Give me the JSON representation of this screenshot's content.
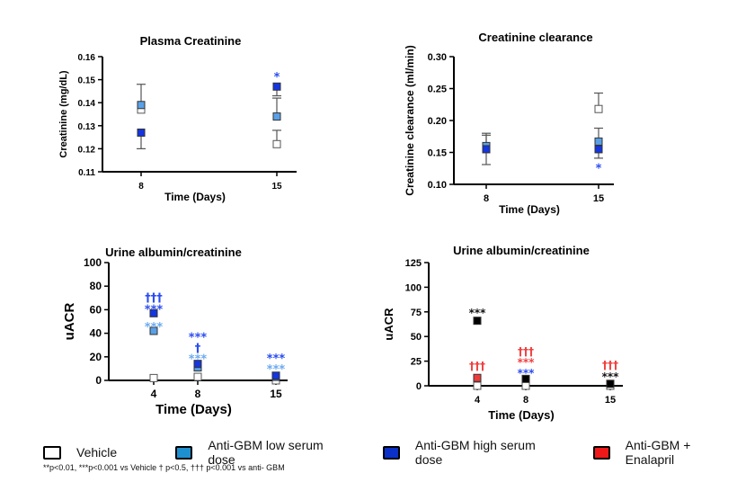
{
  "chart_data": [
    {
      "type": "scatter",
      "title": "Plasma Creatinine",
      "xlabel": "Time (Days)",
      "ylabel": "Creatinine (mg/dL)",
      "categories": [
        "8",
        "15"
      ],
      "ylim": [
        0.11,
        0.16
      ],
      "yticks": [
        "0.11",
        "0.12",
        "0.13",
        "0.14",
        "0.15",
        "0.16"
      ],
      "series": [
        {
          "group": "vehicle",
          "values": [
            0.137,
            0.122
          ],
          "err_low": [
            null,
            null
          ],
          "err_high": [
            null,
            0.128
          ]
        },
        {
          "group": "low",
          "values": [
            0.139,
            0.134
          ],
          "err_low": [
            null,
            null
          ],
          "err_high": [
            0.148,
            0.142
          ]
        },
        {
          "group": "high",
          "values": [
            0.127,
            0.147
          ],
          "err_low": [
            0.12,
            null
          ],
          "err_high": [
            null,
            0.143
          ]
        }
      ],
      "annotations": [
        {
          "category": "15",
          "y": 0.151,
          "text": "*",
          "color": "#2a4cf0"
        }
      ]
    },
    {
      "type": "scatter",
      "title": "Creatinine clearance",
      "xlabel": "Time (Days)",
      "ylabel": "Creatinine clearance (ml/min)",
      "categories": [
        "8",
        "15"
      ],
      "ylim": [
        0.1,
        0.3
      ],
      "yticks": [
        "0.10",
        "0.15",
        "0.20",
        "0.25",
        "0.30"
      ],
      "series": [
        {
          "group": "vehicle",
          "values": [
            0.157,
            0.218
          ],
          "err_low": [
            null,
            null
          ],
          "err_high": [
            0.177,
            0.243
          ]
        },
        {
          "group": "low",
          "values": [
            0.16,
            0.167
          ],
          "err_low": [
            null,
            null
          ],
          "err_high": [
            0.18,
            0.188
          ]
        },
        {
          "group": "high",
          "values": [
            0.155,
            0.155
          ],
          "err_low": [
            0.131,
            0.141
          ],
          "err_high": [
            null,
            null
          ]
        }
      ],
      "annotations": [
        {
          "category": "15",
          "y": 0.125,
          "text": "*",
          "color": "#2a4cf0"
        }
      ]
    },
    {
      "type": "scatter",
      "title": "Urine albumin/creatinine",
      "xlabel": "Time (Days)",
      "ylabel": "uACR",
      "categories": [
        "4",
        "8",
        "15"
      ],
      "ylim": [
        0,
        100
      ],
      "yticks": [
        "0",
        "20",
        "40",
        "60",
        "80",
        "100"
      ],
      "series": [
        {
          "group": "vehicle",
          "values": [
            2,
            3,
            0
          ]
        },
        {
          "group": "low",
          "values": [
            42,
            11,
            3
          ]
        },
        {
          "group": "high",
          "values": [
            57,
            14,
            4
          ]
        }
      ],
      "annotations": [
        {
          "category": "4",
          "y": 70,
          "text": "†††",
          "color": "#2a4cf0"
        },
        {
          "category": "4",
          "y": 60,
          "text": "***",
          "color": "#2a4cf0"
        },
        {
          "category": "4",
          "y": 45,
          "text": "***",
          "color": "#6aaaf0"
        },
        {
          "category": "8",
          "y": 23,
          "text": "†",
          "color": "#2a4cf0"
        },
        {
          "category": "8",
          "y": 24.5,
          "text": "***",
          "color": "#2a4cf0"
        },
        {
          "category": "8",
          "y": 18,
          "text": "***",
          "color": "#6aaaf0"
        },
        {
          "category": "15",
          "y": 16,
          "text": "***",
          "color": "#2a4cf0"
        },
        {
          "category": "15",
          "y": 9,
          "text": "***",
          "color": "#6aaaf0"
        }
      ]
    },
    {
      "type": "scatter",
      "title": "Urine albumin/creatinine",
      "xlabel": "Time (Days)",
      "ylabel": "uACR",
      "categories": [
        "4",
        "8",
        "15"
      ],
      "ylim": [
        0,
        125
      ],
      "yticks": [
        "0",
        "25",
        "50",
        "75",
        "100",
        "125"
      ],
      "series": [
        {
          "group": "vehicle",
          "values": [
            0,
            0,
            0
          ]
        },
        {
          "group": "antigbm",
          "values": [
            66,
            7,
            2
          ]
        },
        {
          "group": "enalapril",
          "values": [
            8,
            null,
            null
          ]
        }
      ],
      "annotations": [
        {
          "category": "4",
          "y": 74,
          "text": "***",
          "color": "#111111"
        },
        {
          "category": "4",
          "y": 20,
          "text": "†††",
          "color": "#f04040"
        },
        {
          "category": "8",
          "y": 29,
          "text": "†††",
          "color": "#f04040"
        },
        {
          "category": "8",
          "y": 21,
          "text": "***",
          "color": "#f04040"
        },
        {
          "category": "8",
          "y": 13,
          "text": "***",
          "color": "#2a4cf0"
        },
        {
          "category": "15",
          "y": 21,
          "text": "†††",
          "color": "#f04040"
        },
        {
          "category": "15",
          "y": 9,
          "text": "***",
          "color": "#111111"
        }
      ]
    }
  ],
  "colors": {
    "vehicle": "#ffffff",
    "low": "#5aa0e6",
    "high": "#1436e0",
    "antigbm": "#000000",
    "enalapril": "#f03a3a"
  },
  "legend": [
    {
      "label": "Vehicle",
      "color": "#ffffff"
    },
    {
      "label": "Anti-GBM low serum dose",
      "color": "#1e90d0"
    },
    {
      "label": "Anti-GBM high serum dose",
      "color": "#0a30c8"
    },
    {
      "label": "Anti-GBM + Enalapril",
      "color": "#f01818"
    }
  ],
  "footnote": "**p<0.01, ***p<0.001 vs Vehicle † p<0.5, ††† p<0.001 vs anti- GBM"
}
